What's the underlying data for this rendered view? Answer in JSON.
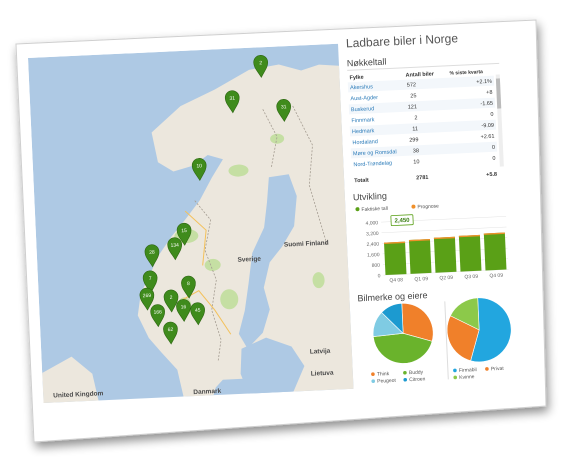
{
  "title": "Ladbare biler i Norge",
  "nokkeltall": {
    "heading": "Nøkkeltall",
    "columns": [
      "Fylke",
      "Antall biler",
      "% siste kvarta"
    ],
    "rows": [
      {
        "fylke": "Akershus",
        "antall": "572",
        "pct": "+2.1%"
      },
      {
        "fylke": "Aust-Agder",
        "antall": "25",
        "pct": "+8"
      },
      {
        "fylke": "Buskerud",
        "antall": "121",
        "pct": "-1.65"
      },
      {
        "fylke": "Finnmark",
        "antall": "2",
        "pct": "0"
      },
      {
        "fylke": "Hedmark",
        "antall": "11",
        "pct": "-9.09"
      },
      {
        "fylke": "Hordaland",
        "antall": "299",
        "pct": "+2.61"
      },
      {
        "fylke": "Møre og Romsdal",
        "antall": "38",
        "pct": "0"
      },
      {
        "fylke": "Nord-Trøndelag",
        "antall": "10",
        "pct": "0"
      }
    ],
    "total_label": "Totalt",
    "total_value": "2781",
    "total_pct": "+5.8"
  },
  "utvikling": {
    "heading": "Utvikling",
    "legend_actual": "Faktiske tall",
    "legend_forecast": "Prognose",
    "tooltip": "2,450"
  },
  "chart_data": {
    "type": "bar",
    "categories": [
      "Q4 08",
      "Q1 09",
      "Q2 09",
      "Q3 09",
      "Q4 09"
    ],
    "series": [
      {
        "name": "Faktiske tall",
        "values": [
          2450,
          2560,
          2640,
          2700,
          2790
        ]
      },
      {
        "name": "Prognose",
        "values": [
          2450,
          2560,
          2640,
          2700,
          2790
        ]
      }
    ],
    "ylim": [
      0,
      4000
    ],
    "yticks": [
      "4,000",
      "3,200",
      "2,400",
      "1,600",
      "800",
      "0"
    ],
    "colors": {
      "actual": "#5aa017",
      "forecast": "#f0902a"
    }
  },
  "bilmerke": {
    "heading": "Bilmerke og eiere",
    "pie1": {
      "slices": [
        {
          "label": "Think",
          "value": 30,
          "color": "#f0802a"
        },
        {
          "label": "Buddy",
          "value": 44,
          "color": "#6ab32c"
        },
        {
          "label": "Peugeot",
          "value": 14,
          "color": "#7fcbe3"
        },
        {
          "label": "Citroen",
          "value": 12,
          "color": "#1c9ad0"
        }
      ]
    },
    "pie2": {
      "slices": [
        {
          "label": "Firmabil",
          "value": 55,
          "color": "#22a6df"
        },
        {
          "label": "Privat",
          "value": 28,
          "color": "#f0802a"
        },
        {
          "label": "Kvinne",
          "value": 17,
          "color": "#8cc94a"
        }
      ]
    }
  },
  "map": {
    "country_labels": [
      "Sverige",
      "Sverige",
      "Suomi Finland",
      "Latvija",
      "Lietuva",
      "Danmark",
      "United Kingdom"
    ],
    "markers": [
      "2",
      "31",
      "31",
      "10",
      "15",
      "134",
      "28",
      "7",
      "269",
      "8",
      "2",
      "166",
      "16",
      "45",
      "62"
    ]
  },
  "colors": {
    "marker": "#3f8b1c",
    "sea": "#aec9e4",
    "land": "#ece7dd",
    "forest": "#c5dfa3"
  }
}
